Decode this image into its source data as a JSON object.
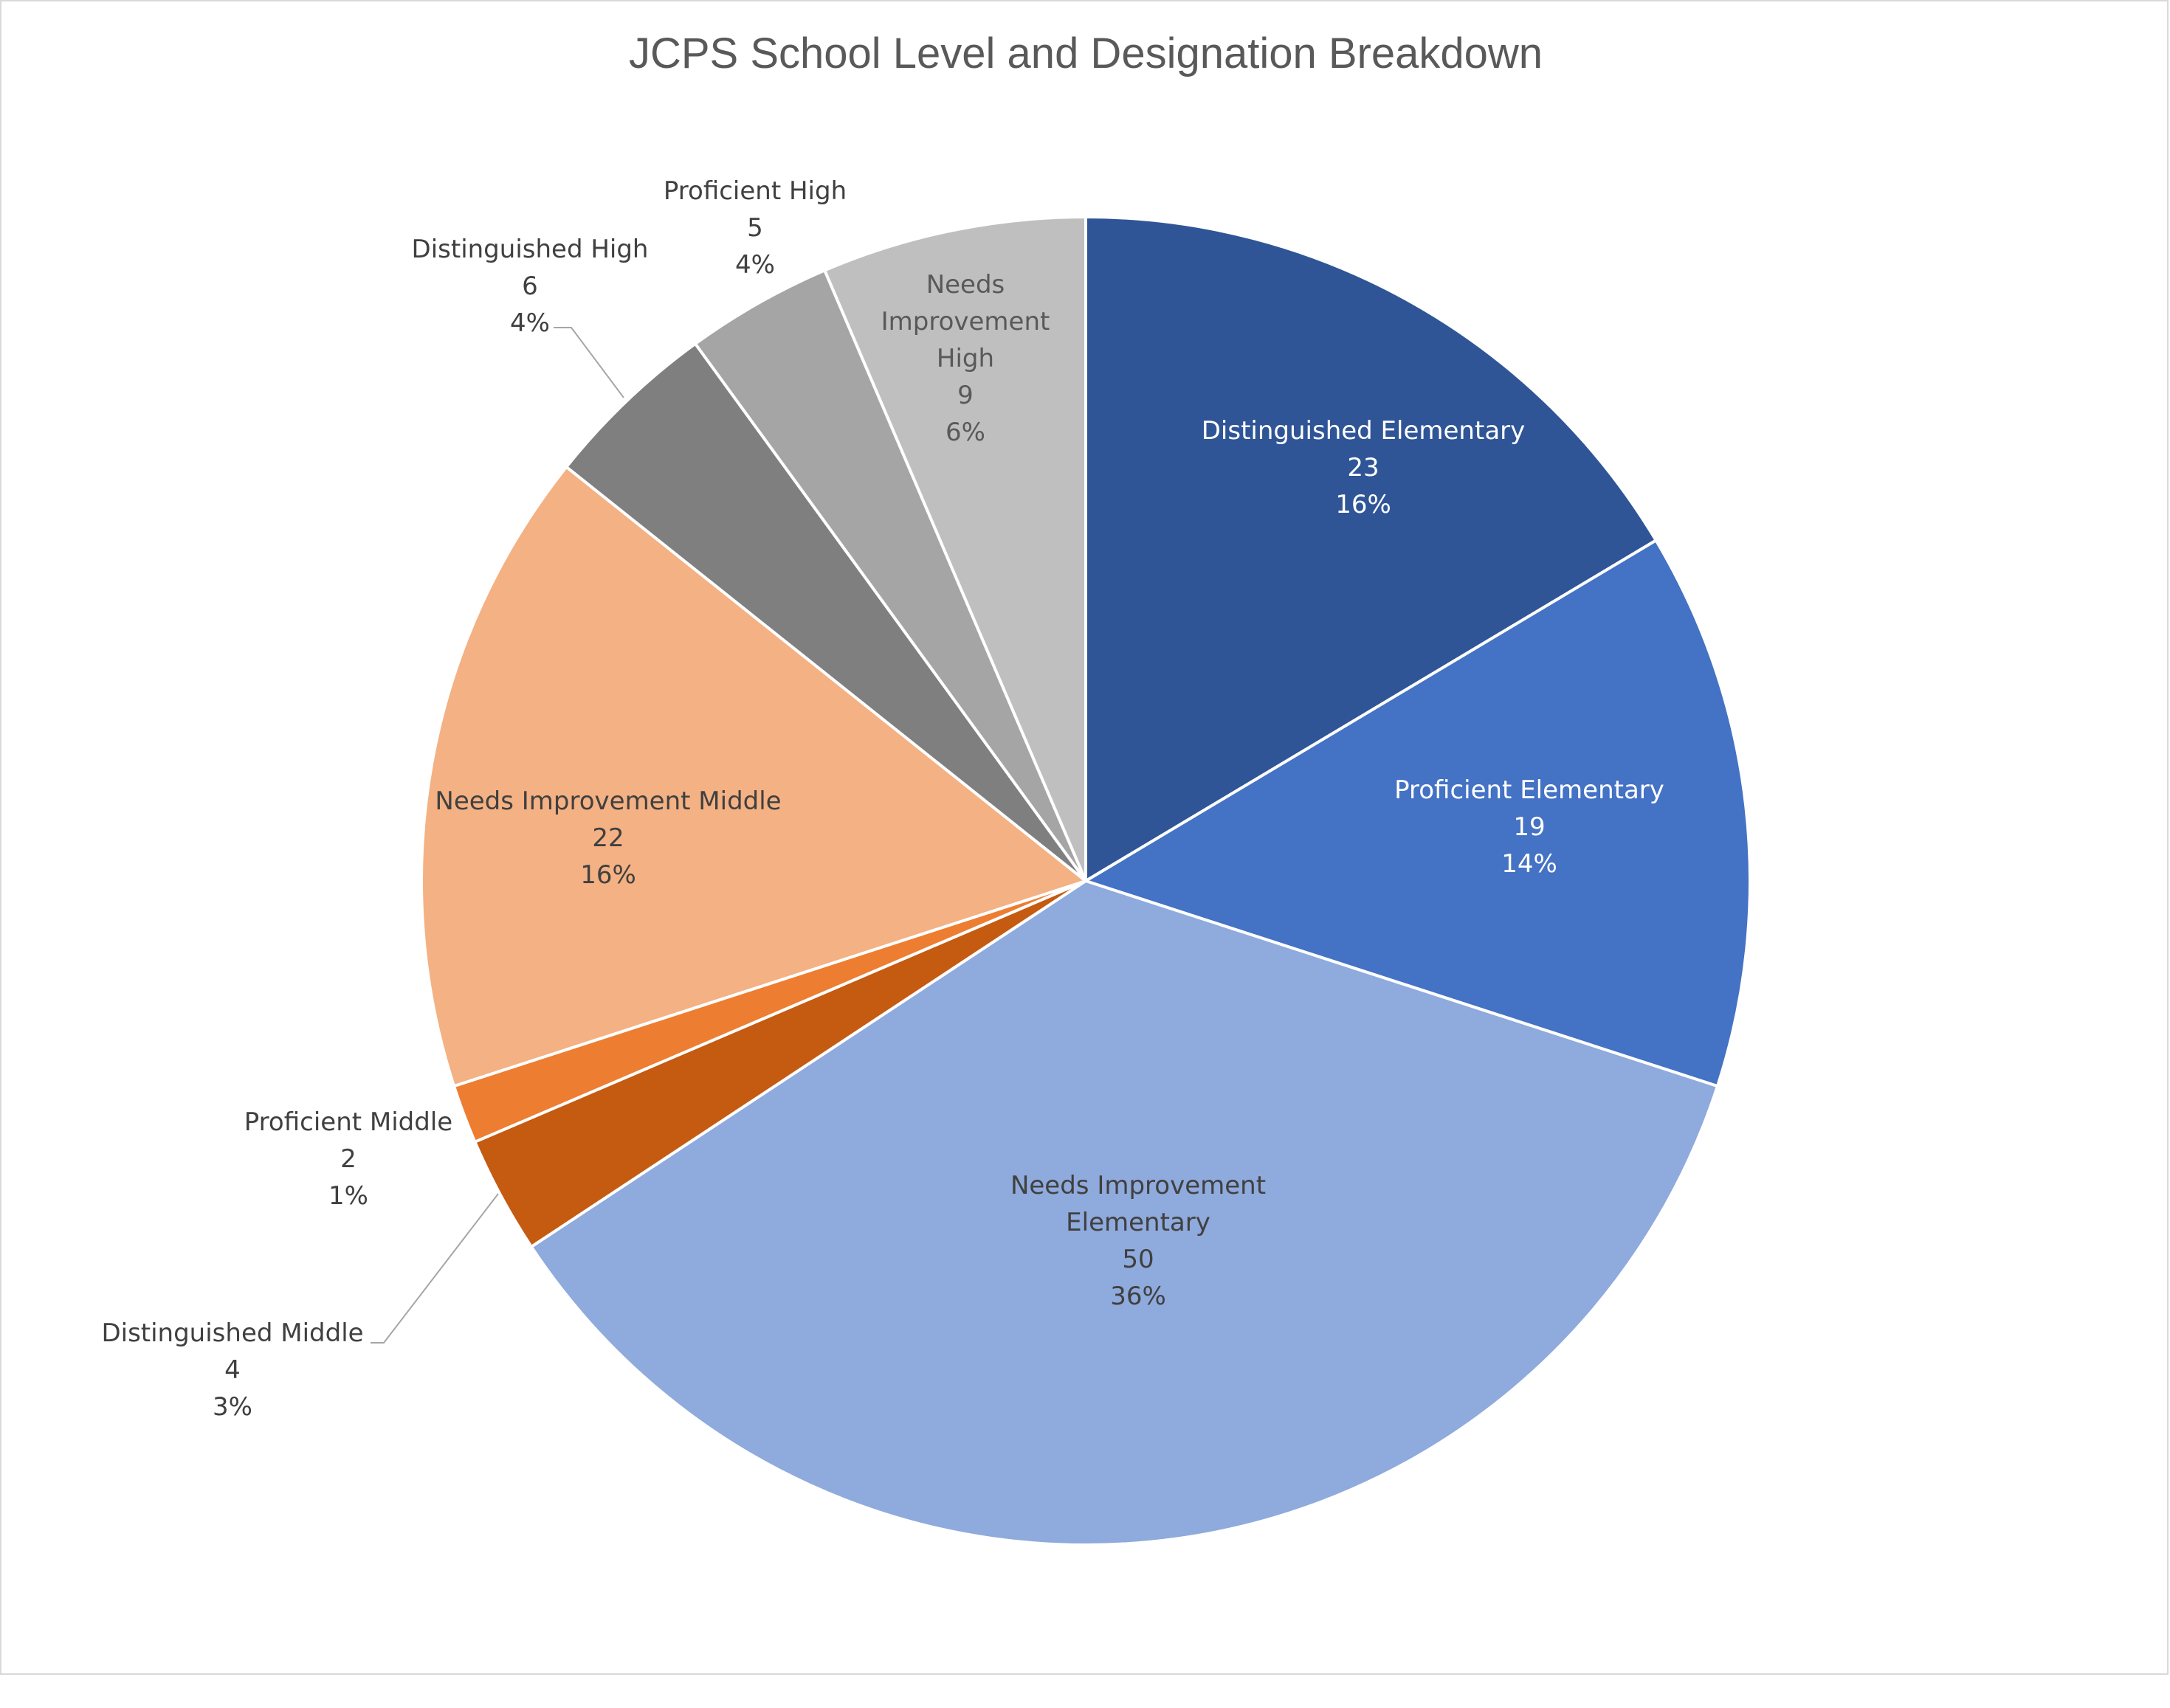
{
  "chart_data": {
    "type": "pie",
    "title": "JCPS School Level and Designation Breakdown",
    "start_angle_deg": 0,
    "direction": "clockwise",
    "slices": [
      {
        "label": "Distinguished Elementary",
        "value": 23,
        "percent": "16%",
        "color": "#2f5597",
        "label_color": "#ffffff"
      },
      {
        "label": "Proficient Elementary",
        "value": 19,
        "percent": "14%",
        "color": "#4472c4",
        "label_color": "#ffffff"
      },
      {
        "label": "Needs Improvement Elementary",
        "value": 50,
        "percent": "36%",
        "color": "#8faadc",
        "label_color": "#404040"
      },
      {
        "label": "Distinguished Middle",
        "value": 4,
        "percent": "3%",
        "color": "#c55a11",
        "label_color": "#404040"
      },
      {
        "label": "Proficient Middle",
        "value": 2,
        "percent": "1%",
        "color": "#ed7d31",
        "label_color": "#404040"
      },
      {
        "label": "Needs Improvement Middle",
        "value": 22,
        "percent": "16%",
        "color": "#f4b183",
        "label_color": "#404040"
      },
      {
        "label": "Distinguished High",
        "value": 6,
        "percent": "4%",
        "color": "#7f7f7f",
        "label_color": "#404040"
      },
      {
        "label": "Proficient High",
        "value": 5,
        "percent": "4%",
        "color": "#a5a5a5",
        "label_color": "#404040"
      },
      {
        "label": "Needs Improvement High",
        "value": 9,
        "percent": "6%",
        "color": "#bfbfbf",
        "label_color": "#595959"
      }
    ],
    "legend": "none"
  }
}
